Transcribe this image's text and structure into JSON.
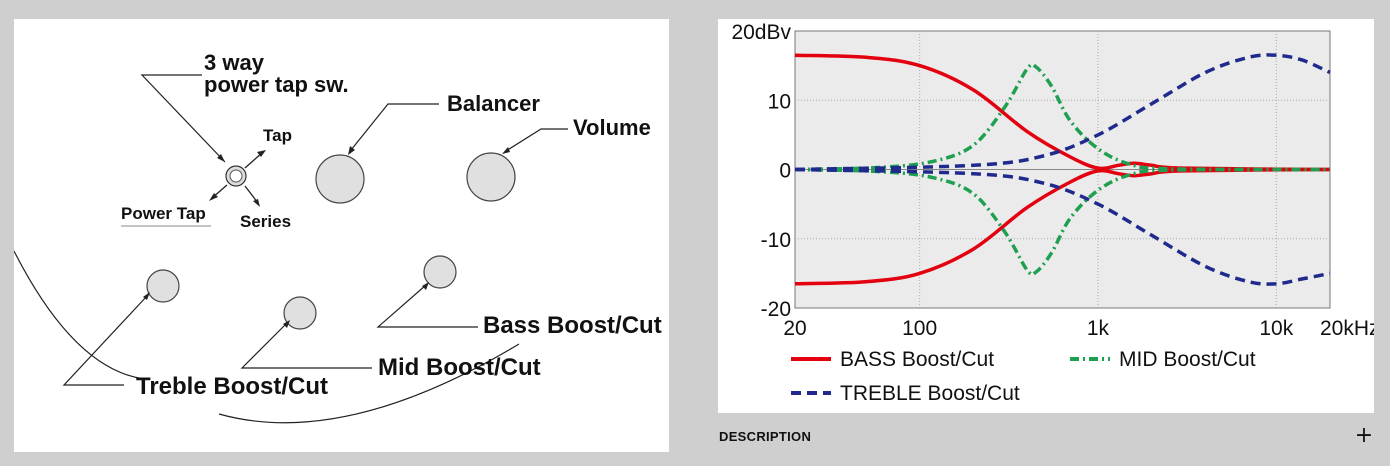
{
  "diagram": {
    "labels": {
      "power_tap_switch": [
        "3 way",
        "power tap sw."
      ],
      "balancer": "Balancer",
      "volume": "Volume",
      "tap": "Tap",
      "power_tap": "Power Tap",
      "series": "Series",
      "bass": "Bass Boost/Cut",
      "mid": "Mid Boost/Cut",
      "treble": "Treble Boost/Cut"
    }
  },
  "chart_data": {
    "type": "line",
    "x_scale": "log",
    "xlim": [
      20,
      20000
    ],
    "ylim": [
      -20,
      20
    ],
    "x_ticks": [
      20,
      100,
      1000,
      10000,
      20000
    ],
    "x_tick_labels": [
      "20",
      "100",
      "1k",
      "10k",
      "20kHz"
    ],
    "y_ticks": [
      20,
      10,
      0,
      -10,
      -20
    ],
    "y_tick_labels": [
      "20dBv",
      "10",
      "0",
      "-10",
      "-20"
    ],
    "grid": true,
    "legend_position": "bottom",
    "series": [
      {
        "name": "BASS Boost/Cut",
        "color": "#e3000f",
        "dash": "solid",
        "boost": {
          "x": [
            20,
            50,
            100,
            200,
            400,
            700,
            1000,
            1300,
            1600,
            2000,
            3000,
            20000
          ],
          "y": [
            16.5,
            16.2,
            15,
            11.5,
            5.5,
            1.8,
            0.2,
            0.6,
            0.9,
            0.6,
            0.2,
            0
          ]
        },
        "cut": {
          "x": [
            20,
            50,
            100,
            200,
            400,
            700,
            1000,
            1300,
            1600,
            2000,
            3000,
            20000
          ],
          "y": [
            -16.5,
            -16.2,
            -15,
            -11.5,
            -5.5,
            -1.8,
            -0.2,
            -0.6,
            -0.9,
            -0.6,
            -0.2,
            0
          ]
        }
      },
      {
        "name": "MID Boost/Cut",
        "color": "#1ea050",
        "dash": "dashdot",
        "boost": {
          "x": [
            20,
            60,
            120,
            200,
            300,
            400,
            450,
            550,
            700,
            1000,
            1500,
            2500,
            20000
          ],
          "y": [
            0,
            0.3,
            1.2,
            3.5,
            9,
            14.5,
            14.8,
            12,
            7,
            3,
            0.8,
            0.1,
            0
          ]
        },
        "cut": {
          "x": [
            20,
            60,
            120,
            200,
            300,
            400,
            450,
            550,
            700,
            1000,
            1500,
            2500,
            20000
          ],
          "y": [
            0,
            -0.3,
            -1.2,
            -3.5,
            -9,
            -14.5,
            -14.8,
            -12,
            -7,
            -3,
            -0.8,
            -0.1,
            0
          ]
        }
      },
      {
        "name": "TREBLE Boost/Cut",
        "color": "#1f2a8c",
        "dash": "dashed",
        "boost": {
          "x": [
            20,
            200,
            500,
            1000,
            2000,
            4000,
            7000,
            10000,
            14000,
            20000
          ],
          "y": [
            0,
            0.6,
            2,
            5,
            9.5,
            14,
            16.2,
            16.5,
            15.8,
            14
          ]
        },
        "cut": {
          "x": [
            20,
            200,
            500,
            1000,
            2000,
            4000,
            7000,
            10000,
            14000,
            20000
          ],
          "y": [
            0,
            -0.6,
            -2,
            -5,
            -9.5,
            -14,
            -16.2,
            -16.5,
            -15.8,
            -15
          ]
        }
      }
    ]
  },
  "description": {
    "title": "DESCRIPTION",
    "toggle": "+"
  }
}
